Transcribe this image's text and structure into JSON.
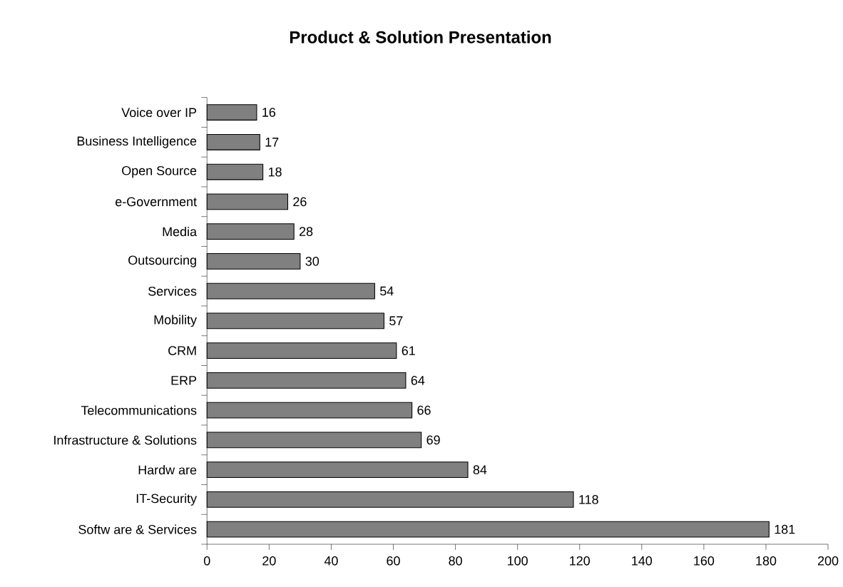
{
  "chart_data": {
    "type": "bar",
    "orientation": "horizontal",
    "title": "Product & Solution Presentation",
    "categories": [
      "Voice over IP",
      "Business Intelligence",
      "Open Source",
      "e-Government",
      "Media",
      "Outsourcing",
      "Services",
      "Mobility",
      "CRM",
      "ERP",
      "Telecommunications",
      "Infrastructure & Solutions",
      "Hardw are",
      "IT-Security",
      "Softw are & Services"
    ],
    "values": [
      16,
      17,
      18,
      26,
      28,
      30,
      54,
      57,
      61,
      64,
      66,
      69,
      84,
      118,
      181
    ],
    "color": "#808080",
    "xlim": [
      0,
      200
    ],
    "xticks": [
      0,
      20,
      40,
      60,
      80,
      100,
      120,
      140,
      160,
      180,
      200
    ],
    "data_labels": true
  }
}
